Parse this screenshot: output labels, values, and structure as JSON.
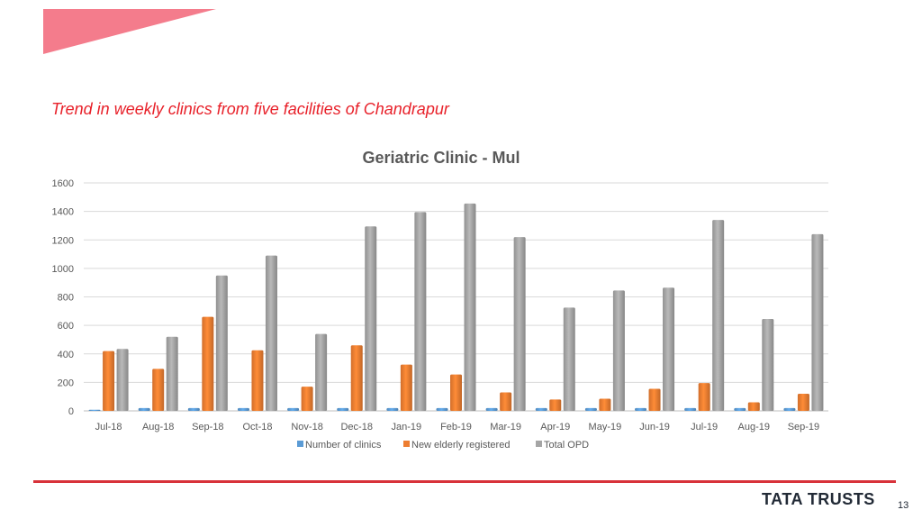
{
  "colors": {
    "banner": "#f47c8c",
    "title": "#e8212a",
    "footer_line": "#d8323a",
    "brand": "#222a36"
  },
  "section_title": "Trend in weekly clinics from five facilities of Chandrapur",
  "footer": {
    "brand": "TATA TRUSTS",
    "page_number": "13"
  },
  "chart_data": {
    "type": "bar",
    "title": "Geriatric Clinic - Mul",
    "xlabel": "",
    "ylabel": "",
    "ylim": [
      0,
      1600
    ],
    "yticks": [
      "0",
      "200",
      "400",
      "600",
      "800",
      "1000",
      "1200",
      "1400",
      "1600"
    ],
    "grid": true,
    "legend": "bottom",
    "categories": [
      "Jul-18",
      "Aug-18",
      "Sep-18",
      "Oct-18",
      "Nov-18",
      "Dec-18",
      "Jan-19",
      "Feb-19",
      "Mar-19",
      "Apr-19",
      "May-19",
      "Jun-19",
      "Jul-19",
      "Aug-19",
      "Sep-19"
    ],
    "series": [
      {
        "name": "Number of clinics",
        "color": "#5b9bd5",
        "values": [
          8,
          20,
          20,
          20,
          20,
          20,
          20,
          20,
          20,
          20,
          20,
          20,
          20,
          20,
          20
        ]
      },
      {
        "name": "New elderly registered",
        "color": "#ed7d31",
        "values": [
          420,
          295,
          660,
          425,
          170,
          460,
          325,
          255,
          130,
          80,
          85,
          155,
          195,
          60,
          120
        ]
      },
      {
        "name": "Total OPD",
        "color": "#a5a5a5",
        "values": [
          435,
          520,
          950,
          1090,
          540,
          1295,
          1395,
          1455,
          1220,
          725,
          845,
          865,
          1340,
          645,
          1240
        ]
      }
    ]
  }
}
